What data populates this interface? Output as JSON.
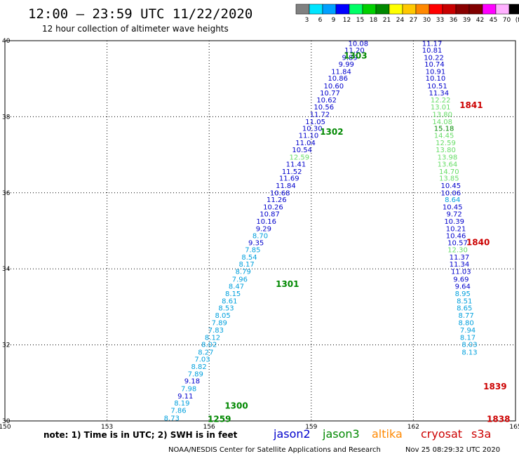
{
  "header": {
    "title": "12:00 – 23:59 UTC 11/22/2020",
    "subtitle": "12 hour collection of altimeter wave heights"
  },
  "colorbar": {
    "labels": [
      "3",
      "6",
      "9",
      "12",
      "15",
      "18",
      "21",
      "24",
      "27",
      "30",
      "33",
      "36",
      "39",
      "42",
      "45",
      "70",
      "(ft)"
    ],
    "colors": [
      "#808080",
      "#00e5ff",
      "#00a0ff",
      "#0000ff",
      "#00ff66",
      "#00d000",
      "#008800",
      "#ffff00",
      "#ffc800",
      "#ff8800",
      "#ff0000",
      "#c80000",
      "#880000",
      "#800000",
      "#ff00ff",
      "#ffb0ff",
      "#000000"
    ]
  },
  "footer": {
    "note": "note:  1) Time is in UTC;  2) SWH is in feet",
    "satellites": [
      {
        "name": "jason2",
        "color": "#0000cc"
      },
      {
        "name": "jason3",
        "color": "#008800"
      },
      {
        "name": "altika",
        "color": "#ff8800"
      },
      {
        "name": "cryosat",
        "color": "#cc0000"
      },
      {
        "name": "s3a",
        "color": "#cc0000"
      }
    ],
    "credit": "NOAA/NESDIS Center for Satellite Applications and Research",
    "timestamp": "Nov 25 08:29:32 UTC 2020"
  },
  "chart_data": {
    "type": "scatter",
    "xlim": [
      150,
      165
    ],
    "ylim": [
      30,
      40
    ],
    "x_ticks": [
      150,
      153,
      156,
      159,
      162,
      165
    ],
    "y_ticks": [
      30,
      32,
      34,
      36,
      38,
      40
    ],
    "grid": true,
    "pass_labels": [
      {
        "text": "1303",
        "lon": 160.3,
        "lat": 39.6,
        "color": "#008800"
      },
      {
        "text": "1302",
        "lon": 159.6,
        "lat": 37.6,
        "color": "#008800"
      },
      {
        "text": "1301",
        "lon": 158.3,
        "lat": 33.6,
        "color": "#008800"
      },
      {
        "text": "1300",
        "lon": 156.8,
        "lat": 30.4,
        "color": "#008800"
      },
      {
        "text": "1259",
        "lon": 156.3,
        "lat": 30.05,
        "color": "#008800"
      },
      {
        "text": "1841",
        "lon": 163.7,
        "lat": 38.3,
        "color": "#cc0000"
      },
      {
        "text": "1840",
        "lon": 163.9,
        "lat": 34.7,
        "color": "#cc0000"
      },
      {
        "text": "1839",
        "lon": 164.4,
        "lat": 30.9,
        "color": "#cc0000"
      },
      {
        "text": "1838",
        "lon": 164.5,
        "lat": 30.05,
        "color": "#cc0000"
      }
    ],
    "series": [
      {
        "name": "track-west",
        "points": [
          {
            "lon": 160.38,
            "lat": 39.92,
            "v": "10.08",
            "c": "#0000cc"
          },
          {
            "lon": 160.27,
            "lat": 39.74,
            "v": "11.20",
            "c": "#0000cc"
          },
          {
            "lon": 160.13,
            "lat": 39.55,
            "v": "9.89",
            "c": "#0000cc"
          },
          {
            "lon": 160.03,
            "lat": 39.37,
            "v": "9.99",
            "c": "#0000cc"
          },
          {
            "lon": 159.88,
            "lat": 39.18,
            "v": "11.84",
            "c": "#0000cc"
          },
          {
            "lon": 159.78,
            "lat": 39.0,
            "v": "10.86",
            "c": "#0000cc"
          },
          {
            "lon": 159.66,
            "lat": 38.8,
            "v": "10.60",
            "c": "#0000cc"
          },
          {
            "lon": 159.55,
            "lat": 38.62,
            "v": "10.77",
            "c": "#0000cc"
          },
          {
            "lon": 159.45,
            "lat": 38.43,
            "v": "10.62",
            "c": "#0000cc"
          },
          {
            "lon": 159.37,
            "lat": 38.25,
            "v": "10.56",
            "c": "#0000cc"
          },
          {
            "lon": 159.25,
            "lat": 38.05,
            "v": "11.72",
            "c": "#0000cc"
          },
          {
            "lon": 159.12,
            "lat": 37.86,
            "v": "11.05",
            "c": "#0000cc"
          },
          {
            "lon": 159.03,
            "lat": 37.68,
            "v": "10.30",
            "c": "#0000cc"
          },
          {
            "lon": 158.92,
            "lat": 37.5,
            "v": "11.10",
            "c": "#0000cc"
          },
          {
            "lon": 158.83,
            "lat": 37.31,
            "v": "11.04",
            "c": "#0000cc"
          },
          {
            "lon": 158.73,
            "lat": 37.12,
            "v": "10.54",
            "c": "#0000cc"
          },
          {
            "lon": 158.65,
            "lat": 36.93,
            "v": "12.59",
            "c": "#66dd66"
          },
          {
            "lon": 158.55,
            "lat": 36.74,
            "v": "11.41",
            "c": "#0000cc"
          },
          {
            "lon": 158.43,
            "lat": 36.55,
            "v": "11.52",
            "c": "#0000cc"
          },
          {
            "lon": 158.35,
            "lat": 36.37,
            "v": "11.69",
            "c": "#0000cc"
          },
          {
            "lon": 158.25,
            "lat": 36.18,
            "v": "11.84",
            "c": "#0000cc"
          },
          {
            "lon": 158.08,
            "lat": 35.99,
            "v": "10.68",
            "c": "#0000cc"
          },
          {
            "lon": 157.98,
            "lat": 35.81,
            "v": "11.26",
            "c": "#0000cc"
          },
          {
            "lon": 157.88,
            "lat": 35.62,
            "v": "10.26",
            "c": "#0000cc"
          },
          {
            "lon": 157.78,
            "lat": 35.43,
            "v": "10.87",
            "c": "#0000cc"
          },
          {
            "lon": 157.68,
            "lat": 35.24,
            "v": "10.16",
            "c": "#0000cc"
          },
          {
            "lon": 157.6,
            "lat": 35.05,
            "v": "9.29",
            "c": "#0000cc"
          },
          {
            "lon": 157.5,
            "lat": 34.86,
            "v": "8.70",
            "c": "#00a0dd"
          },
          {
            "lon": 157.38,
            "lat": 34.68,
            "v": "9.35",
            "c": "#0000cc"
          },
          {
            "lon": 157.28,
            "lat": 34.49,
            "v": "7.85",
            "c": "#00a0dd"
          },
          {
            "lon": 157.18,
            "lat": 34.3,
            "v": "8.54",
            "c": "#00a0dd"
          },
          {
            "lon": 157.1,
            "lat": 34.11,
            "v": "8.17",
            "c": "#00a0dd"
          },
          {
            "lon": 157.0,
            "lat": 33.92,
            "v": "8.79",
            "c": "#00a0dd"
          },
          {
            "lon": 156.9,
            "lat": 33.72,
            "v": "7.96",
            "c": "#00a0dd"
          },
          {
            "lon": 156.8,
            "lat": 33.53,
            "v": "8.47",
            "c": "#00a0dd"
          },
          {
            "lon": 156.7,
            "lat": 33.34,
            "v": "8.15",
            "c": "#00a0dd"
          },
          {
            "lon": 156.6,
            "lat": 33.15,
            "v": "8.61",
            "c": "#00a0dd"
          },
          {
            "lon": 156.5,
            "lat": 32.96,
            "v": "8.53",
            "c": "#00a0dd"
          },
          {
            "lon": 156.4,
            "lat": 32.77,
            "v": "8.05",
            "c": "#00a0dd"
          },
          {
            "lon": 156.3,
            "lat": 32.57,
            "v": "7.89",
            "c": "#00a0dd"
          },
          {
            "lon": 156.2,
            "lat": 32.38,
            "v": "7.83",
            "c": "#00a0dd"
          },
          {
            "lon": 156.1,
            "lat": 32.19,
            "v": "8.12",
            "c": "#00a0dd"
          },
          {
            "lon": 156.0,
            "lat": 32.0,
            "v": "8.02",
            "c": "#00a0dd"
          },
          {
            "lon": 155.9,
            "lat": 31.8,
            "v": "8.27",
            "c": "#00a0dd"
          },
          {
            "lon": 155.8,
            "lat": 31.61,
            "v": "7.03",
            "c": "#00a0dd"
          },
          {
            "lon": 155.7,
            "lat": 31.42,
            "v": "8.82",
            "c": "#00a0dd"
          },
          {
            "lon": 155.6,
            "lat": 31.23,
            "v": "7.89",
            "c": "#00a0dd"
          },
          {
            "lon": 155.5,
            "lat": 31.04,
            "v": "9.18",
            "c": "#0000cc"
          },
          {
            "lon": 155.4,
            "lat": 30.84,
            "v": "7.98",
            "c": "#00a0dd"
          },
          {
            "lon": 155.3,
            "lat": 30.65,
            "v": "9.11",
            "c": "#0000cc"
          },
          {
            "lon": 155.2,
            "lat": 30.46,
            "v": "8.19",
            "c": "#00a0dd"
          },
          {
            "lon": 155.1,
            "lat": 30.27,
            "v": "7.86",
            "c": "#00a0dd"
          },
          {
            "lon": 154.9,
            "lat": 30.06,
            "v": "8.73",
            "c": "#00a0dd"
          }
        ]
      },
      {
        "name": "track-east",
        "points": [
          {
            "lon": 162.55,
            "lat": 39.92,
            "v": "11.17",
            "c": "#0000cc"
          },
          {
            "lon": 162.55,
            "lat": 39.74,
            "v": "10.81",
            "c": "#0000cc"
          },
          {
            "lon": 162.6,
            "lat": 39.55,
            "v": "10.22",
            "c": "#0000cc"
          },
          {
            "lon": 162.62,
            "lat": 39.37,
            "v": "10.74",
            "c": "#0000cc"
          },
          {
            "lon": 162.65,
            "lat": 39.18,
            "v": "10.91",
            "c": "#0000cc"
          },
          {
            "lon": 162.65,
            "lat": 39.0,
            "v": "10.10",
            "c": "#0000cc"
          },
          {
            "lon": 162.7,
            "lat": 38.8,
            "v": "10.51",
            "c": "#0000cc"
          },
          {
            "lon": 162.75,
            "lat": 38.62,
            "v": "11.34",
            "c": "#0000cc"
          },
          {
            "lon": 162.8,
            "lat": 38.43,
            "v": "12.22",
            "c": "#66dd66"
          },
          {
            "lon": 162.8,
            "lat": 38.25,
            "v": "13.01",
            "c": "#66dd66"
          },
          {
            "lon": 162.85,
            "lat": 38.05,
            "v": "13.80",
            "c": "#66dd66"
          },
          {
            "lon": 162.85,
            "lat": 37.86,
            "v": "14.08",
            "c": "#66dd66"
          },
          {
            "lon": 162.9,
            "lat": 37.68,
            "v": "15.18",
            "c": "#008800"
          },
          {
            "lon": 162.9,
            "lat": 37.5,
            "v": "14.45",
            "c": "#66dd66"
          },
          {
            "lon": 162.95,
            "lat": 37.31,
            "v": "12.59",
            "c": "#66dd66"
          },
          {
            "lon": 162.95,
            "lat": 37.12,
            "v": "13.80",
            "c": "#66dd66"
          },
          {
            "lon": 163.0,
            "lat": 36.93,
            "v": "13.98",
            "c": "#66dd66"
          },
          {
            "lon": 163.0,
            "lat": 36.74,
            "v": "13.64",
            "c": "#66dd66"
          },
          {
            "lon": 163.05,
            "lat": 36.55,
            "v": "14.70",
            "c": "#66dd66"
          },
          {
            "lon": 163.05,
            "lat": 36.37,
            "v": "13.85",
            "c": "#66dd66"
          },
          {
            "lon": 163.1,
            "lat": 36.18,
            "v": "10.45",
            "c": "#0000cc"
          },
          {
            "lon": 163.1,
            "lat": 35.99,
            "v": "10.06",
            "c": "#0000cc"
          },
          {
            "lon": 163.15,
            "lat": 35.81,
            "v": "8.64",
            "c": "#00a0dd"
          },
          {
            "lon": 163.15,
            "lat": 35.62,
            "v": "10.45",
            "c": "#0000cc"
          },
          {
            "lon": 163.2,
            "lat": 35.43,
            "v": "9.72",
            "c": "#0000cc"
          },
          {
            "lon": 163.2,
            "lat": 35.24,
            "v": "10.39",
            "c": "#0000cc"
          },
          {
            "lon": 163.25,
            "lat": 35.05,
            "v": "10.21",
            "c": "#0000cc"
          },
          {
            "lon": 163.25,
            "lat": 34.86,
            "v": "10.46",
            "c": "#0000cc"
          },
          {
            "lon": 163.3,
            "lat": 34.68,
            "v": "10.57",
            "c": "#0000cc"
          },
          {
            "lon": 163.3,
            "lat": 34.49,
            "v": "12.30",
            "c": "#66dd66"
          },
          {
            "lon": 163.35,
            "lat": 34.3,
            "v": "11.37",
            "c": "#0000cc"
          },
          {
            "lon": 163.35,
            "lat": 34.11,
            "v": "11.34",
            "c": "#0000cc"
          },
          {
            "lon": 163.4,
            "lat": 33.92,
            "v": "11.03",
            "c": "#0000cc"
          },
          {
            "lon": 163.4,
            "lat": 33.72,
            "v": "9.69",
            "c": "#0000cc"
          },
          {
            "lon": 163.45,
            "lat": 33.53,
            "v": "9.64",
            "c": "#0000cc"
          },
          {
            "lon": 163.45,
            "lat": 33.34,
            "v": "8.95",
            "c": "#00a0dd"
          },
          {
            "lon": 163.5,
            "lat": 33.15,
            "v": "8.51",
            "c": "#00a0dd"
          },
          {
            "lon": 163.5,
            "lat": 32.96,
            "v": "8.65",
            "c": "#00a0dd"
          },
          {
            "lon": 163.55,
            "lat": 32.77,
            "v": "8.77",
            "c": "#00a0dd"
          },
          {
            "lon": 163.55,
            "lat": 32.57,
            "v": "8.80",
            "c": "#00a0dd"
          },
          {
            "lon": 163.6,
            "lat": 32.38,
            "v": "7.94",
            "c": "#00a0dd"
          },
          {
            "lon": 163.6,
            "lat": 32.19,
            "v": "8.17",
            "c": "#00a0dd"
          },
          {
            "lon": 163.65,
            "lat": 32.0,
            "v": "8.03",
            "c": "#00a0dd"
          },
          {
            "lon": 163.65,
            "lat": 31.8,
            "v": "8.13",
            "c": "#00a0dd"
          }
        ]
      }
    ]
  }
}
